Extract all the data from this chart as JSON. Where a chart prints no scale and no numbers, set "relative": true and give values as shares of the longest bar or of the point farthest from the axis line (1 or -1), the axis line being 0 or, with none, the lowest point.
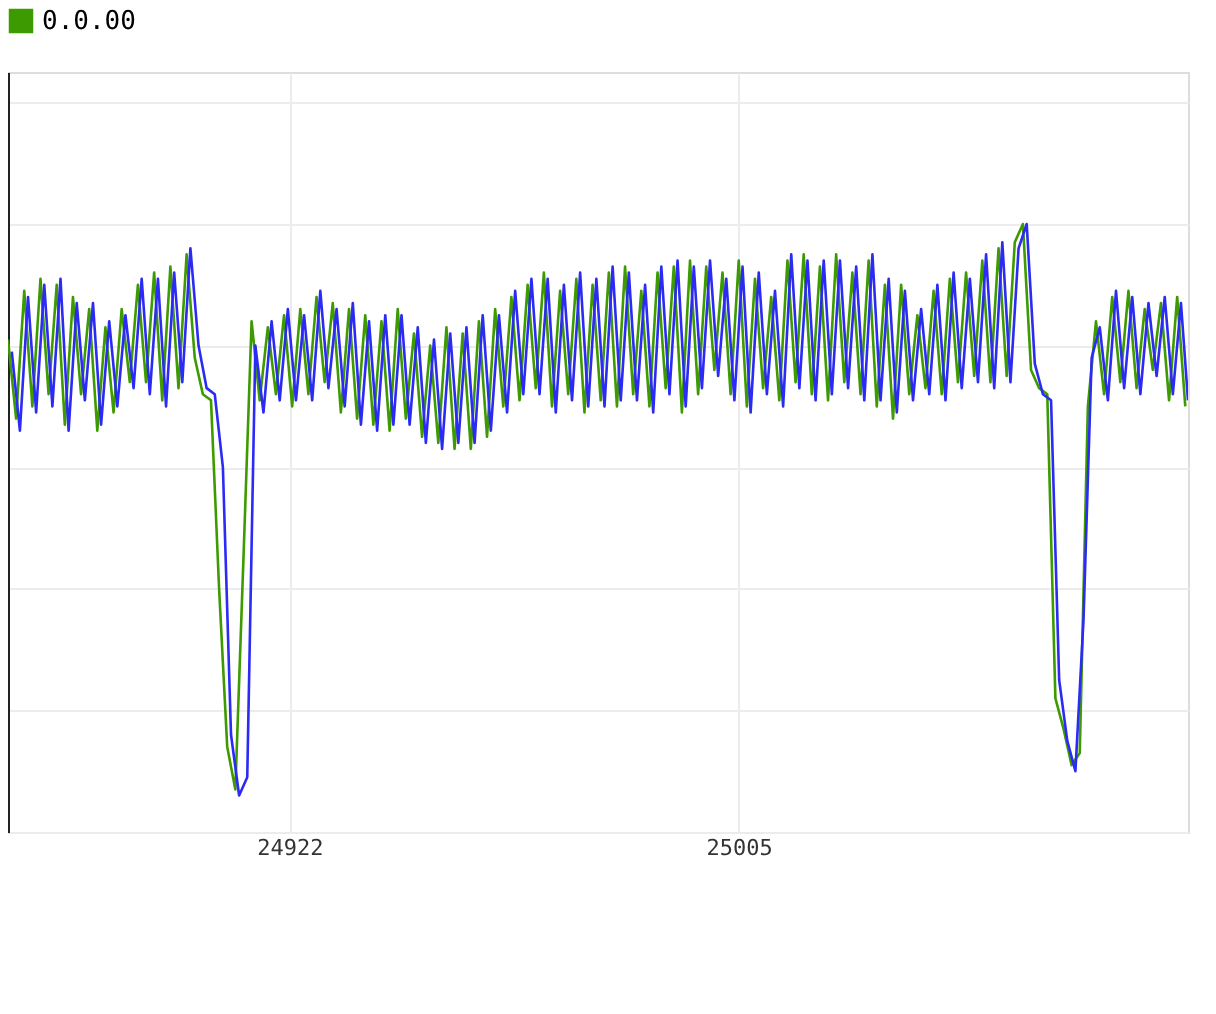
{
  "chart_data": {
    "type": "line",
    "relative": true,
    "grid": true,
    "legend": "top left",
    "tick_labels": "x",
    "marker": "none",
    "line_style": "solid",
    "xlim": [
      24870,
      25088
    ],
    "xticks": [
      24922,
      25005
    ],
    "series": [
      {
        "name": "0.0.00",
        "color": "#3d9a00",
        "x": [
          24870,
          24871.5,
          24873,
          24874.5,
          24876,
          24877.5,
          24879,
          24880.5,
          24882,
          24883.5,
          24885,
          24886.5,
          24888,
          24889.5,
          24891,
          24892.5,
          24894,
          24895.5,
          24897,
          24898.5,
          24900,
          24901.5,
          24903,
          24904.5,
          24906,
          24907.5,
          24909,
          24910.5,
          24912,
          24913.5,
          24915,
          24916.5,
          24918,
          24919.5,
          24921,
          24922.5,
          24924,
          24925.5,
          24927,
          24928.5,
          24930,
          24931.5,
          24933,
          24934.5,
          24936,
          24937.5,
          24939,
          24940.5,
          24942,
          24943.5,
          24945,
          24946.5,
          24948,
          24949.5,
          24951,
          24952.5,
          24954,
          24955.5,
          24957,
          24958.5,
          24960,
          24961.5,
          24963,
          24964.5,
          24966,
          24967.5,
          24969,
          24970.5,
          24972,
          24973.5,
          24975,
          24976.5,
          24978,
          24979.5,
          24981,
          24982.5,
          24984,
          24985.5,
          24987,
          24988.5,
          24990,
          24991.5,
          24993,
          24994.5,
          24996,
          24997.5,
          24999,
          25000.5,
          25002,
          25003.5,
          25005,
          25006.5,
          25008,
          25009.5,
          25011,
          25012.5,
          25014,
          25015.5,
          25017,
          25018.5,
          25020,
          25021.5,
          25023,
          25024.5,
          25026,
          25027.5,
          25029,
          25030.5,
          25032,
          25033.5,
          25035,
          25036.5,
          25038,
          25039.5,
          25041,
          25042.5,
          25044,
          25045.5,
          25047,
          25048.5,
          25050,
          25051.5,
          25053,
          25054.5,
          25056,
          25057.5,
          25059,
          25060.5,
          25062,
          25063.5,
          25065,
          25066.5,
          25068,
          25069.5,
          25071,
          25072.5,
          25074,
          25075.5,
          25077,
          25078.5,
          25080,
          25081.5,
          25083,
          25084.5,
          25086,
          25087.5
        ],
        "values": [
          0.81,
          0.68,
          0.89,
          0.7,
          0.91,
          0.72,
          0.9,
          0.67,
          0.88,
          0.72,
          0.86,
          0.66,
          0.83,
          0.69,
          0.86,
          0.74,
          0.9,
          0.74,
          0.92,
          0.71,
          0.93,
          0.73,
          0.95,
          0.78,
          0.72,
          0.71,
          0.4,
          0.14,
          0.07,
          0.45,
          0.84,
          0.71,
          0.83,
          0.72,
          0.85,
          0.7,
          0.86,
          0.72,
          0.88,
          0.74,
          0.87,
          0.69,
          0.86,
          0.68,
          0.85,
          0.67,
          0.84,
          0.66,
          0.86,
          0.68,
          0.82,
          0.65,
          0.8,
          0.64,
          0.83,
          0.63,
          0.82,
          0.63,
          0.84,
          0.65,
          0.86,
          0.7,
          0.88,
          0.71,
          0.9,
          0.73,
          0.92,
          0.7,
          0.89,
          0.72,
          0.91,
          0.69,
          0.9,
          0.71,
          0.92,
          0.7,
          0.93,
          0.72,
          0.89,
          0.7,
          0.92,
          0.73,
          0.93,
          0.69,
          0.94,
          0.72,
          0.93,
          0.76,
          0.92,
          0.72,
          0.94,
          0.7,
          0.91,
          0.73,
          0.88,
          0.71,
          0.94,
          0.74,
          0.95,
          0.72,
          0.93,
          0.71,
          0.95,
          0.74,
          0.92,
          0.72,
          0.94,
          0.7,
          0.9,
          0.68,
          0.9,
          0.72,
          0.85,
          0.73,
          0.89,
          0.72,
          0.91,
          0.74,
          0.92,
          0.75,
          0.94,
          0.74,
          0.96,
          0.75,
          0.97,
          1.0,
          0.76,
          0.73,
          0.72,
          0.22,
          0.17,
          0.11,
          0.13,
          0.7,
          0.84,
          0.72,
          0.88,
          0.74,
          0.89,
          0.73,
          0.86,
          0.76,
          0.87,
          0.71,
          0.88,
          0.7
        ]
      },
      {
        "color": "#2b2bf5",
        "x": [
          24870.7,
          24872.2,
          24873.7,
          24875.2,
          24876.7,
          24878.2,
          24879.7,
          24881.2,
          24882.7,
          24884.2,
          24885.7,
          24887.2,
          24888.7,
          24890.2,
          24891.7,
          24893.2,
          24894.7,
          24896.2,
          24897.7,
          24899.2,
          24900.7,
          24902.2,
          24903.7,
          24905.2,
          24906.7,
          24908.2,
          24909.7,
          24911.2,
          24912.7,
          24914.2,
          24915.7,
          24917.2,
          24918.7,
          24920.2,
          24921.7,
          24923.2,
          24924.7,
          24926.2,
          24927.7,
          24929.2,
          24930.7,
          24932.2,
          24933.7,
          24935.2,
          24936.7,
          24938.2,
          24939.7,
          24941.2,
          24942.7,
          24944.2,
          24945.7,
          24947.2,
          24948.7,
          24950.2,
          24951.7,
          24953.2,
          24954.7,
          24956.2,
          24957.7,
          24959.2,
          24960.7,
          24962.2,
          24963.7,
          24965.2,
          24966.7,
          24968.2,
          24969.7,
          24971.2,
          24972.7,
          24974.2,
          24975.7,
          24977.2,
          24978.7,
          24980.2,
          24981.7,
          24983.2,
          24984.7,
          24986.2,
          24987.7,
          24989.2,
          24990.7,
          24992.2,
          24993.7,
          24995.2,
          24996.7,
          24998.2,
          24999.7,
          25001.2,
          25002.7,
          25004.2,
          25005.7,
          25007.2,
          25008.7,
          25010.2,
          25011.7,
          25013.2,
          25014.7,
          25016.2,
          25017.7,
          25019.2,
          25020.7,
          25022.2,
          25023.7,
          25025.2,
          25026.7,
          25028.2,
          25029.7,
          25031.2,
          25032.7,
          25034.2,
          25035.7,
          25037.2,
          25038.7,
          25040.2,
          25041.7,
          25043.2,
          25044.7,
          25046.2,
          25047.7,
          25049.2,
          25050.7,
          25052.2,
          25053.7,
          25055.2,
          25056.7,
          25058.2,
          25059.7,
          25061.2,
          25062.7,
          25064.2,
          25065.7,
          25067.2,
          25068.7,
          25070.2,
          25071.7,
          25073.2,
          25074.7,
          25076.2,
          25077.7,
          25079.2,
          25080.7,
          25082.2,
          25083.7,
          25085.2,
          25086.7,
          25088
        ],
        "values": [
          0.79,
          0.66,
          0.88,
          0.69,
          0.9,
          0.7,
          0.91,
          0.66,
          0.87,
          0.71,
          0.87,
          0.67,
          0.84,
          0.7,
          0.85,
          0.73,
          0.91,
          0.72,
          0.91,
          0.7,
          0.92,
          0.74,
          0.96,
          0.8,
          0.73,
          0.72,
          0.6,
          0.16,
          0.06,
          0.09,
          0.8,
          0.69,
          0.84,
          0.71,
          0.86,
          0.71,
          0.85,
          0.71,
          0.89,
          0.73,
          0.86,
          0.7,
          0.87,
          0.67,
          0.84,
          0.66,
          0.85,
          0.67,
          0.85,
          0.67,
          0.83,
          0.64,
          0.81,
          0.63,
          0.82,
          0.64,
          0.83,
          0.64,
          0.85,
          0.66,
          0.85,
          0.69,
          0.89,
          0.72,
          0.91,
          0.72,
          0.91,
          0.69,
          0.9,
          0.71,
          0.92,
          0.7,
          0.91,
          0.7,
          0.93,
          0.71,
          0.92,
          0.71,
          0.9,
          0.69,
          0.93,
          0.72,
          0.94,
          0.7,
          0.93,
          0.73,
          0.94,
          0.75,
          0.91,
          0.71,
          0.93,
          0.69,
          0.92,
          0.72,
          0.89,
          0.7,
          0.95,
          0.73,
          0.94,
          0.71,
          0.94,
          0.72,
          0.94,
          0.73,
          0.93,
          0.71,
          0.95,
          0.71,
          0.91,
          0.69,
          0.89,
          0.71,
          0.86,
          0.72,
          0.9,
          0.71,
          0.92,
          0.73,
          0.91,
          0.74,
          0.95,
          0.73,
          0.97,
          0.74,
          0.96,
          1.0,
          0.77,
          0.72,
          0.71,
          0.25,
          0.15,
          0.1,
          0.35,
          0.78,
          0.83,
          0.71,
          0.89,
          0.73,
          0.88,
          0.72,
          0.87,
          0.75,
          0.88,
          0.72,
          0.87,
          0.71
        ]
      }
    ]
  }
}
